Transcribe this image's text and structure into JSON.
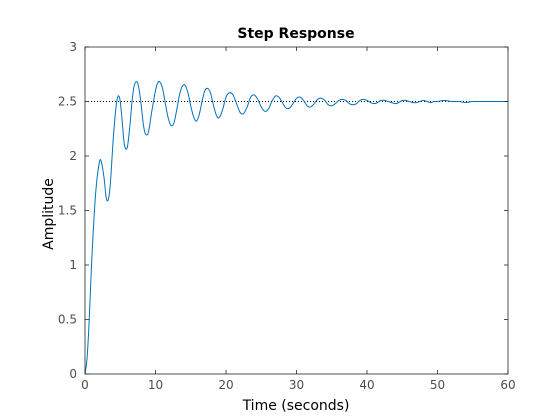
{
  "chart_data": {
    "type": "line",
    "title": "Step Response",
    "xlabel": "Time (seconds)",
    "ylabel": "Amplitude",
    "xlim": [
      0,
      60
    ],
    "ylim": [
      0,
      3
    ],
    "xticks": [
      0,
      10,
      20,
      30,
      40,
      50,
      60
    ],
    "yticks": [
      0,
      0.5,
      1,
      1.5,
      2,
      2.5,
      3
    ],
    "xtick_labels": [
      "0",
      "10",
      "20",
      "30",
      "40",
      "50",
      "60"
    ],
    "ytick_labels": [
      "0",
      "0.5",
      "1",
      "1.5",
      "2",
      "2.5",
      "3"
    ],
    "grid": false,
    "steady_state_reference": {
      "value": 2.5,
      "style": "dotted",
      "color": "#000000"
    },
    "series": [
      {
        "color": "#0072bd",
        "x": [
          0,
          0.3,
          0.6,
          1.0,
          1.5,
          2.0,
          2.3,
          2.7,
          3.0,
          3.3,
          3.6,
          4.0,
          4.4,
          4.7,
          5.0,
          5.3,
          5.6,
          6.0,
          6.4,
          6.7,
          7.0,
          7.4,
          7.7,
          8.0,
          8.3,
          8.6,
          9.0,
          9.5,
          10.0,
          10.3,
          10.6,
          11.0,
          11.4,
          11.8,
          12.2,
          12.6,
          13.0,
          13.4,
          13.8,
          14.2,
          14.6,
          15.0,
          15.4,
          15.8,
          16.2,
          16.6,
          17.0,
          17.4,
          17.8,
          18.2,
          18.6,
          19.0,
          19.5,
          20.0,
          20.5,
          21.0,
          21.5,
          22.0,
          22.5,
          23.0,
          23.5,
          24.0,
          24.5,
          25.0,
          25.5,
          26.0,
          26.5,
          27.0,
          27.5,
          28.0,
          28.5,
          29.0,
          29.5,
          30.0,
          30.5,
          31.0,
          31.5,
          32.0,
          32.5,
          33.0,
          33.5,
          34.0,
          34.5,
          35.0,
          35.5,
          36.0,
          36.5,
          37.0,
          37.5,
          38.0,
          38.5,
          39.0,
          39.5,
          40.0,
          40.5,
          41.0,
          41.5,
          42.0,
          42.5,
          43.0,
          43.5,
          44.0,
          44.5,
          45.0,
          45.5,
          46.0,
          46.5,
          47.0,
          47.5,
          48.0,
          48.5,
          49.0,
          49.5,
          50.0,
          51.0,
          52.0,
          53.0,
          54.0,
          55.0,
          56.0,
          57.0,
          58.0,
          59.0,
          60.0
        ],
        "y": [
          0,
          0.15,
          0.5,
          1.1,
          1.65,
          1.93,
          1.95,
          1.8,
          1.62,
          1.6,
          1.75,
          2.15,
          2.45,
          2.55,
          2.5,
          2.3,
          2.1,
          2.08,
          2.3,
          2.52,
          2.65,
          2.68,
          2.6,
          2.45,
          2.28,
          2.2,
          2.22,
          2.42,
          2.6,
          2.67,
          2.68,
          2.62,
          2.48,
          2.35,
          2.28,
          2.3,
          2.42,
          2.56,
          2.64,
          2.65,
          2.58,
          2.46,
          2.36,
          2.32,
          2.38,
          2.5,
          2.6,
          2.62,
          2.58,
          2.47,
          2.38,
          2.35,
          2.42,
          2.54,
          2.58,
          2.56,
          2.48,
          2.4,
          2.39,
          2.45,
          2.54,
          2.56,
          2.52,
          2.45,
          2.41,
          2.43,
          2.5,
          2.55,
          2.54,
          2.49,
          2.44,
          2.44,
          2.48,
          2.53,
          2.54,
          2.51,
          2.46,
          2.45,
          2.48,
          2.52,
          2.53,
          2.51,
          2.47,
          2.46,
          2.48,
          2.51,
          2.52,
          2.51,
          2.48,
          2.47,
          2.48,
          2.51,
          2.52,
          2.51,
          2.49,
          2.48,
          2.49,
          2.51,
          2.51,
          2.5,
          2.49,
          2.48,
          2.49,
          2.51,
          2.51,
          2.5,
          2.49,
          2.49,
          2.5,
          2.51,
          2.5,
          2.49,
          2.5,
          2.5,
          2.51,
          2.5,
          2.5,
          2.49,
          2.5,
          2.5,
          2.5,
          2.5,
          2.5,
          2.5
        ]
      }
    ]
  }
}
